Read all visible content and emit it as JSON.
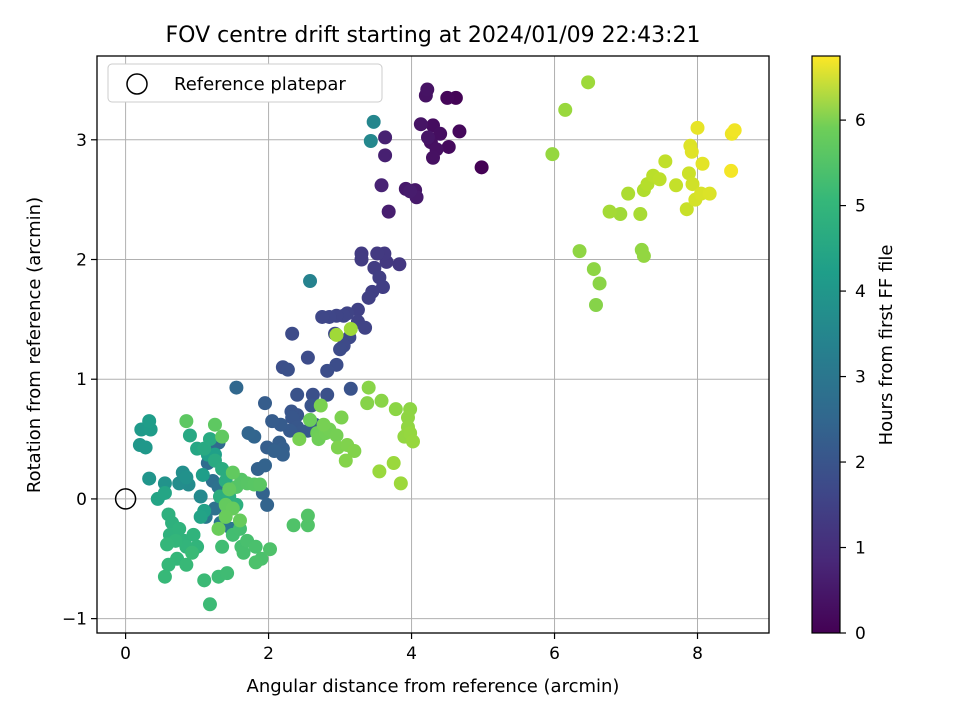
{
  "chart_data": {
    "type": "scatter",
    "title": "FOV centre drift starting at 2024/01/09 22:43:21",
    "xlabel": "Angular distance from reference (arcmin)",
    "ylabel": "Rotation from reference (arcmin)",
    "xlim": [
      -0.4,
      9.0
    ],
    "ylim": [
      -1.12,
      3.7
    ],
    "xticks": [
      0,
      2,
      4,
      6,
      8
    ],
    "yticks": [
      -1,
      0,
      1,
      2,
      3
    ],
    "grid": true,
    "legend": {
      "placement": "top-left",
      "entries": [
        "Reference platepar"
      ]
    },
    "reference_point": {
      "x": 0,
      "y": 0,
      "label": "Reference platepar"
    },
    "colorbar": {
      "label": "Hours from first FF file",
      "colormap": "viridis",
      "min": 0,
      "max": 6.75,
      "ticks": [
        0,
        1,
        2,
        3,
        4,
        5,
        6
      ]
    },
    "points": [
      {
        "x": 4.98,
        "y": 2.77,
        "h": 0.02
      },
      {
        "x": 4.62,
        "y": 3.35,
        "h": 0.05
      },
      {
        "x": 4.5,
        "y": 3.35,
        "h": 0.1
      },
      {
        "x": 4.67,
        "y": 3.07,
        "h": 0.14
      },
      {
        "x": 4.52,
        "y": 2.94,
        "h": 0.18
      },
      {
        "x": 4.3,
        "y": 3.12,
        "h": 0.22
      },
      {
        "x": 4.4,
        "y": 3.05,
        "h": 0.25
      },
      {
        "x": 4.27,
        "y": 2.98,
        "h": 0.27
      },
      {
        "x": 4.35,
        "y": 2.92,
        "h": 0.29
      },
      {
        "x": 4.3,
        "y": 2.85,
        "h": 0.3
      },
      {
        "x": 4.2,
        "y": 3.37,
        "h": 0.32
      },
      {
        "x": 4.22,
        "y": 3.42,
        "h": 0.34
      },
      {
        "x": 4.13,
        "y": 3.13,
        "h": 0.36
      },
      {
        "x": 4.23,
        "y": 3.02,
        "h": 0.38
      },
      {
        "x": 4.05,
        "y": 2.58,
        "h": 0.42
      },
      {
        "x": 3.92,
        "y": 2.59,
        "h": 0.45
      },
      {
        "x": 4.07,
        "y": 2.52,
        "h": 0.48
      },
      {
        "x": 3.98,
        "y": 2.57,
        "h": 0.52
      },
      {
        "x": 3.68,
        "y": 2.4,
        "h": 0.56
      },
      {
        "x": 3.63,
        "y": 2.87,
        "h": 0.6
      },
      {
        "x": 3.63,
        "y": 3.02,
        "h": 0.63
      },
      {
        "x": 3.58,
        "y": 2.62,
        "h": 0.66
      },
      {
        "x": 3.83,
        "y": 1.96,
        "h": 1.1
      },
      {
        "x": 3.65,
        "y": 1.98,
        "h": 1.12
      },
      {
        "x": 3.62,
        "y": 2.05,
        "h": 1.14
      },
      {
        "x": 3.52,
        "y": 2.05,
        "h": 1.16
      },
      {
        "x": 3.3,
        "y": 2.05,
        "h": 1.18
      },
      {
        "x": 3.3,
        "y": 2.0,
        "h": 1.2
      },
      {
        "x": 3.48,
        "y": 1.93,
        "h": 1.22
      },
      {
        "x": 3.55,
        "y": 1.85,
        "h": 1.24
      },
      {
        "x": 3.6,
        "y": 1.77,
        "h": 1.26
      },
      {
        "x": 3.45,
        "y": 1.73,
        "h": 1.28
      },
      {
        "x": 3.4,
        "y": 1.68,
        "h": 1.3
      },
      {
        "x": 3.25,
        "y": 1.58,
        "h": 1.32
      },
      {
        "x": 3.25,
        "y": 1.48,
        "h": 1.34
      },
      {
        "x": 3.35,
        "y": 1.43,
        "h": 1.36
      },
      {
        "x": 3.1,
        "y": 1.55,
        "h": 1.38
      },
      {
        "x": 3.05,
        "y": 1.53,
        "h": 1.4
      },
      {
        "x": 2.95,
        "y": 1.53,
        "h": 1.42
      },
      {
        "x": 2.85,
        "y": 1.52,
        "h": 1.44
      },
      {
        "x": 2.75,
        "y": 1.52,
        "h": 1.46
      },
      {
        "x": 2.93,
        "y": 1.38,
        "h": 1.48
      },
      {
        "x": 3.13,
        "y": 1.35,
        "h": 1.5
      },
      {
        "x": 3.05,
        "y": 1.28,
        "h": 1.52
      },
      {
        "x": 3.0,
        "y": 1.25,
        "h": 1.54
      },
      {
        "x": 2.33,
        "y": 1.38,
        "h": 1.56
      },
      {
        "x": 2.55,
        "y": 1.18,
        "h": 1.58
      },
      {
        "x": 2.95,
        "y": 1.12,
        "h": 1.6
      },
      {
        "x": 2.82,
        "y": 1.07,
        "h": 1.62
      },
      {
        "x": 2.2,
        "y": 1.1,
        "h": 1.64
      },
      {
        "x": 2.27,
        "y": 1.08,
        "h": 1.66
      },
      {
        "x": 2.62,
        "y": 0.87,
        "h": 1.68
      },
      {
        "x": 2.82,
        "y": 0.87,
        "h": 1.7
      },
      {
        "x": 2.4,
        "y": 0.87,
        "h": 1.72
      },
      {
        "x": 3.15,
        "y": 0.92,
        "h": 1.74
      },
      {
        "x": 2.6,
        "y": 0.78,
        "h": 1.76
      },
      {
        "x": 2.4,
        "y": 0.7,
        "h": 1.78
      },
      {
        "x": 2.32,
        "y": 0.73,
        "h": 1.8
      },
      {
        "x": 2.33,
        "y": 0.68,
        "h": 1.82
      },
      {
        "x": 2.4,
        "y": 0.6,
        "h": 1.84
      },
      {
        "x": 2.43,
        "y": 0.55,
        "h": 1.86
      },
      {
        "x": 2.55,
        "y": 0.57,
        "h": 1.88
      },
      {
        "x": 2.65,
        "y": 0.62,
        "h": 1.9
      },
      {
        "x": 2.3,
        "y": 0.57,
        "h": 1.92
      },
      {
        "x": 2.17,
        "y": 0.62,
        "h": 1.94
      },
      {
        "x": 2.05,
        "y": 0.65,
        "h": 1.96
      },
      {
        "x": 1.95,
        "y": 0.8,
        "h": 1.98
      },
      {
        "x": 1.98,
        "y": 0.43,
        "h": 2.0
      },
      {
        "x": 2.15,
        "y": 0.47,
        "h": 2.02
      },
      {
        "x": 2.2,
        "y": 0.42,
        "h": 2.04
      },
      {
        "x": 2.2,
        "y": 0.37,
        "h": 2.06
      },
      {
        "x": 2.08,
        "y": 0.4,
        "h": 2.08
      },
      {
        "x": 1.85,
        "y": 0.25,
        "h": 2.1
      },
      {
        "x": 1.95,
        "y": 0.28,
        "h": 2.12
      },
      {
        "x": 1.92,
        "y": 0.05,
        "h": 2.14
      },
      {
        "x": 1.98,
        "y": -0.05,
        "h": 2.16
      },
      {
        "x": 1.8,
        "y": 0.52,
        "h": 2.18
      },
      {
        "x": 1.72,
        "y": 0.55,
        "h": 2.2
      },
      {
        "x": 1.55,
        "y": 0.93,
        "h": 2.25
      },
      {
        "x": 1.3,
        "y": 0.47,
        "h": 2.3
      },
      {
        "x": 1.2,
        "y": 0.45,
        "h": 2.35
      },
      {
        "x": 1.15,
        "y": 0.3,
        "h": 2.4
      },
      {
        "x": 1.22,
        "y": 0.15,
        "h": 2.45
      },
      {
        "x": 1.3,
        "y": 0.1,
        "h": 2.5
      },
      {
        "x": 1.25,
        "y": -0.08,
        "h": 2.55
      },
      {
        "x": 1.33,
        "y": -0.2,
        "h": 2.6
      },
      {
        "x": 1.48,
        "y": -0.25,
        "h": 2.65
      },
      {
        "x": 1.12,
        "y": -0.15,
        "h": 2.7
      },
      {
        "x": 2.58,
        "y": 1.82,
        "h": 3.0
      },
      {
        "x": 3.47,
        "y": 3.15,
        "h": 3.1
      },
      {
        "x": 3.43,
        "y": 2.99,
        "h": 3.15
      },
      {
        "x": 1.05,
        "y": 0.02,
        "h": 3.2
      },
      {
        "x": 0.88,
        "y": 0.12,
        "h": 3.25
      },
      {
        "x": 0.75,
        "y": 0.13,
        "h": 3.3
      },
      {
        "x": 0.8,
        "y": 0.22,
        "h": 3.35
      },
      {
        "x": 0.85,
        "y": 0.18,
        "h": 3.4
      },
      {
        "x": 0.55,
        "y": 0.13,
        "h": 3.45
      },
      {
        "x": 0.33,
        "y": 0.17,
        "h": 3.5
      },
      {
        "x": 0.2,
        "y": 0.45,
        "h": 3.55
      },
      {
        "x": 0.28,
        "y": 0.43,
        "h": 3.6
      },
      {
        "x": 0.22,
        "y": 0.58,
        "h": 3.65
      },
      {
        "x": 0.35,
        "y": 0.58,
        "h": 3.7
      },
      {
        "x": 0.33,
        "y": 0.65,
        "h": 3.72
      },
      {
        "x": 1.08,
        "y": 0.2,
        "h": 3.75
      },
      {
        "x": 1.15,
        "y": 0.37,
        "h": 3.78
      },
      {
        "x": 1.25,
        "y": 0.37,
        "h": 3.8
      },
      {
        "x": 1.1,
        "y": -0.1,
        "h": 3.85
      },
      {
        "x": 1.05,
        "y": -0.15,
        "h": 3.9
      },
      {
        "x": 0.45,
        "y": 0.0,
        "h": 3.92
      },
      {
        "x": 0.55,
        "y": 0.05,
        "h": 3.95
      },
      {
        "x": 1.0,
        "y": 0.42,
        "h": 4.0
      },
      {
        "x": 0.9,
        "y": 0.53,
        "h": 4.05
      },
      {
        "x": 1.1,
        "y": 0.42,
        "h": 4.08
      },
      {
        "x": 1.18,
        "y": 0.5,
        "h": 4.1
      },
      {
        "x": 1.25,
        "y": 0.32,
        "h": 4.12
      },
      {
        "x": 1.35,
        "y": 0.25,
        "h": 4.15
      },
      {
        "x": 1.4,
        "y": 0.15,
        "h": 4.18
      },
      {
        "x": 1.32,
        "y": 0.02,
        "h": 4.2
      },
      {
        "x": 1.45,
        "y": 0.02,
        "h": 4.22
      },
      {
        "x": 1.55,
        "y": -0.05,
        "h": 4.25
      },
      {
        "x": 0.6,
        "y": -0.13,
        "h": 4.28
      },
      {
        "x": 0.65,
        "y": -0.2,
        "h": 4.3
      },
      {
        "x": 0.62,
        "y": -0.3,
        "h": 4.32
      },
      {
        "x": 0.75,
        "y": -0.25,
        "h": 4.34
      },
      {
        "x": 0.82,
        "y": -0.35,
        "h": 4.36
      },
      {
        "x": 0.95,
        "y": -0.3,
        "h": 4.38
      },
      {
        "x": 1.0,
        "y": -0.4,
        "h": 4.4
      },
      {
        "x": 0.85,
        "y": -0.4,
        "h": 4.42
      },
      {
        "x": 0.7,
        "y": -0.35,
        "h": 4.44
      },
      {
        "x": 0.58,
        "y": -0.38,
        "h": 4.46
      },
      {
        "x": 0.72,
        "y": -0.5,
        "h": 4.48
      },
      {
        "x": 0.6,
        "y": -0.55,
        "h": 4.5
      },
      {
        "x": 0.55,
        "y": -0.65,
        "h": 4.52
      },
      {
        "x": 0.85,
        "y": -0.55,
        "h": 4.54
      },
      {
        "x": 0.93,
        "y": -0.45,
        "h": 4.56
      },
      {
        "x": 1.1,
        "y": -0.68,
        "h": 4.58
      },
      {
        "x": 1.18,
        "y": -0.88,
        "h": 4.6
      },
      {
        "x": 1.3,
        "y": -0.65,
        "h": 4.62
      },
      {
        "x": 1.42,
        "y": -0.62,
        "h": 4.64
      },
      {
        "x": 1.35,
        "y": -0.4,
        "h": 4.66
      },
      {
        "x": 1.5,
        "y": -0.3,
        "h": 4.68
      },
      {
        "x": 1.6,
        "y": -0.25,
        "h": 4.7
      },
      {
        "x": 1.62,
        "y": -0.4,
        "h": 4.72
      },
      {
        "x": 1.65,
        "y": -0.45,
        "h": 4.74
      },
      {
        "x": 1.7,
        "y": -0.35,
        "h": 4.76
      },
      {
        "x": 1.82,
        "y": -0.4,
        "h": 4.78
      },
      {
        "x": 1.9,
        "y": -0.5,
        "h": 4.8
      },
      {
        "x": 1.82,
        "y": -0.53,
        "h": 4.82
      },
      {
        "x": 2.02,
        "y": -0.42,
        "h": 4.84
      },
      {
        "x": 2.35,
        "y": -0.22,
        "h": 4.86
      },
      {
        "x": 2.55,
        "y": -0.22,
        "h": 4.88
      },
      {
        "x": 2.55,
        "y": -0.14,
        "h": 4.9
      },
      {
        "x": 1.55,
        "y": 0.1,
        "h": 4.92
      },
      {
        "x": 1.62,
        "y": 0.16,
        "h": 4.94
      },
      {
        "x": 1.7,
        "y": 0.13,
        "h": 4.96
      },
      {
        "x": 1.8,
        "y": 0.12,
        "h": 4.98
      },
      {
        "x": 1.88,
        "y": 0.12,
        "h": 5.0
      },
      {
        "x": 0.85,
        "y": 0.65,
        "h": 5.02
      },
      {
        "x": 1.25,
        "y": 0.62,
        "h": 5.04
      },
      {
        "x": 1.35,
        "y": 0.52,
        "h": 5.06
      },
      {
        "x": 1.5,
        "y": 0.22,
        "h": 5.08
      },
      {
        "x": 1.45,
        "y": 0.08,
        "h": 5.1
      },
      {
        "x": 1.4,
        "y": -0.05,
        "h": 5.12
      },
      {
        "x": 1.5,
        "y": -0.08,
        "h": 5.14
      },
      {
        "x": 1.6,
        "y": -0.18,
        "h": 5.16
      },
      {
        "x": 1.4,
        "y": -0.15,
        "h": 5.18
      },
      {
        "x": 1.3,
        "y": -0.25,
        "h": 5.2
      },
      {
        "x": 2.58,
        "y": 0.66,
        "h": 5.22
      },
      {
        "x": 2.68,
        "y": 0.55,
        "h": 5.24
      },
      {
        "x": 2.7,
        "y": 0.5,
        "h": 5.26
      },
      {
        "x": 2.8,
        "y": 0.55,
        "h": 5.28
      },
      {
        "x": 2.85,
        "y": 0.58,
        "h": 5.3
      },
      {
        "x": 2.95,
        "y": 0.53,
        "h": 5.32
      },
      {
        "x": 2.77,
        "y": 0.62,
        "h": 5.34
      },
      {
        "x": 2.43,
        "y": 0.5,
        "h": 5.36
      },
      {
        "x": 2.73,
        "y": 0.78,
        "h": 5.38
      },
      {
        "x": 3.02,
        "y": 0.68,
        "h": 5.4
      },
      {
        "x": 2.97,
        "y": 0.43,
        "h": 5.42
      },
      {
        "x": 3.1,
        "y": 0.45,
        "h": 5.44
      },
      {
        "x": 3.2,
        "y": 0.4,
        "h": 5.46
      },
      {
        "x": 3.08,
        "y": 0.32,
        "h": 5.48
      },
      {
        "x": 3.38,
        "y": 0.8,
        "h": 5.5
      },
      {
        "x": 3.4,
        "y": 0.93,
        "h": 5.52
      },
      {
        "x": 3.58,
        "y": 0.82,
        "h": 5.54
      },
      {
        "x": 3.78,
        "y": 0.75,
        "h": 5.56
      },
      {
        "x": 3.98,
        "y": 0.75,
        "h": 5.58
      },
      {
        "x": 3.95,
        "y": 0.68,
        "h": 5.6
      },
      {
        "x": 3.95,
        "y": 0.6,
        "h": 5.62
      },
      {
        "x": 3.9,
        "y": 0.52,
        "h": 5.64
      },
      {
        "x": 3.98,
        "y": 0.55,
        "h": 5.66
      },
      {
        "x": 4.02,
        "y": 0.48,
        "h": 5.68
      },
      {
        "x": 3.55,
        "y": 0.23,
        "h": 5.7
      },
      {
        "x": 3.75,
        "y": 0.3,
        "h": 5.72
      },
      {
        "x": 3.85,
        "y": 0.13,
        "h": 5.74
      },
      {
        "x": 3.15,
        "y": 1.42,
        "h": 5.76
      },
      {
        "x": 2.95,
        "y": 1.37,
        "h": 5.78
      },
      {
        "x": 6.58,
        "y": 1.62,
        "h": 5.5
      },
      {
        "x": 6.63,
        "y": 1.8,
        "h": 5.55
      },
      {
        "x": 6.55,
        "y": 1.92,
        "h": 5.58
      },
      {
        "x": 6.35,
        "y": 2.07,
        "h": 5.6
      },
      {
        "x": 7.22,
        "y": 2.08,
        "h": 5.62
      },
      {
        "x": 7.25,
        "y": 2.03,
        "h": 5.64
      },
      {
        "x": 5.97,
        "y": 2.88,
        "h": 5.66
      },
      {
        "x": 6.15,
        "y": 3.25,
        "h": 5.7
      },
      {
        "x": 6.47,
        "y": 3.48,
        "h": 5.75
      },
      {
        "x": 6.92,
        "y": 2.38,
        "h": 5.78
      },
      {
        "x": 6.77,
        "y": 2.4,
        "h": 5.82
      },
      {
        "x": 7.2,
        "y": 2.38,
        "h": 5.86
      },
      {
        "x": 7.03,
        "y": 2.55,
        "h": 5.9
      },
      {
        "x": 7.25,
        "y": 2.58,
        "h": 5.95
      },
      {
        "x": 7.3,
        "y": 2.63,
        "h": 6.0
      },
      {
        "x": 7.38,
        "y": 2.7,
        "h": 6.05
      },
      {
        "x": 7.47,
        "y": 2.67,
        "h": 6.08
      },
      {
        "x": 7.55,
        "y": 2.82,
        "h": 6.12
      },
      {
        "x": 7.7,
        "y": 2.62,
        "h": 6.16
      },
      {
        "x": 7.85,
        "y": 2.42,
        "h": 6.2
      },
      {
        "x": 7.88,
        "y": 2.72,
        "h": 6.24
      },
      {
        "x": 7.93,
        "y": 2.63,
        "h": 6.28
      },
      {
        "x": 7.97,
        "y": 2.5,
        "h": 6.32
      },
      {
        "x": 8.05,
        "y": 2.55,
        "h": 6.36
      },
      {
        "x": 8.17,
        "y": 2.55,
        "h": 6.4
      },
      {
        "x": 7.9,
        "y": 2.95,
        "h": 6.42
      },
      {
        "x": 7.92,
        "y": 2.9,
        "h": 6.45
      },
      {
        "x": 8.07,
        "y": 2.8,
        "h": 6.48
      },
      {
        "x": 8.0,
        "y": 3.1,
        "h": 6.52
      },
      {
        "x": 8.48,
        "y": 3.05,
        "h": 6.58
      },
      {
        "x": 8.52,
        "y": 3.08,
        "h": 6.62
      },
      {
        "x": 8.47,
        "y": 2.74,
        "h": 6.66
      }
    ]
  }
}
